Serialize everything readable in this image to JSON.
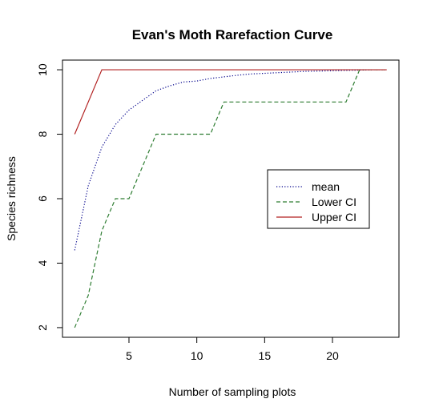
{
  "chart_data": {
    "type": "line",
    "title": "Evan's Moth Rarefaction Curve",
    "xlabel": "Number of sampling plots",
    "ylabel": "Species richness",
    "xlim": [
      0.1,
      24.9
    ],
    "ylim": [
      1.7,
      10.3
    ],
    "xticks": [
      5,
      10,
      15,
      20
    ],
    "yticks": [
      2,
      4,
      6,
      8,
      10
    ],
    "grid": false,
    "legend": {
      "position": "right",
      "entries": [
        "mean",
        "Lower CI",
        "Upper CI"
      ]
    },
    "x": [
      1,
      2,
      3,
      4,
      5,
      6,
      7,
      8,
      9,
      10,
      11,
      12,
      13,
      14,
      15,
      16,
      17,
      18,
      19,
      20,
      21,
      22,
      23,
      24
    ],
    "series": [
      {
        "name": "mean",
        "color": "#00008b",
        "style": "dotted",
        "values": [
          4.4,
          6.4,
          7.6,
          8.3,
          8.75,
          9.05,
          9.35,
          9.5,
          9.62,
          9.65,
          9.73,
          9.78,
          9.83,
          9.87,
          9.89,
          9.91,
          9.93,
          9.95,
          9.96,
          9.97,
          9.98,
          9.99,
          10,
          10
        ]
      },
      {
        "name": "Lower CI",
        "color": "#2e7d32",
        "style": "dashed",
        "values": [
          2,
          3,
          5,
          6,
          6,
          7,
          8,
          8,
          8,
          8,
          8,
          9,
          9,
          9,
          9,
          9,
          9,
          9,
          9,
          9,
          9,
          10,
          10,
          10
        ]
      },
      {
        "name": "Upper CI",
        "color": "#b22222",
        "style": "solid",
        "values": [
          8,
          9,
          10,
          10,
          10,
          10,
          10,
          10,
          10,
          10,
          10,
          10,
          10,
          10,
          10,
          10,
          10,
          10,
          10,
          10,
          10,
          10,
          10,
          10
        ]
      }
    ]
  }
}
